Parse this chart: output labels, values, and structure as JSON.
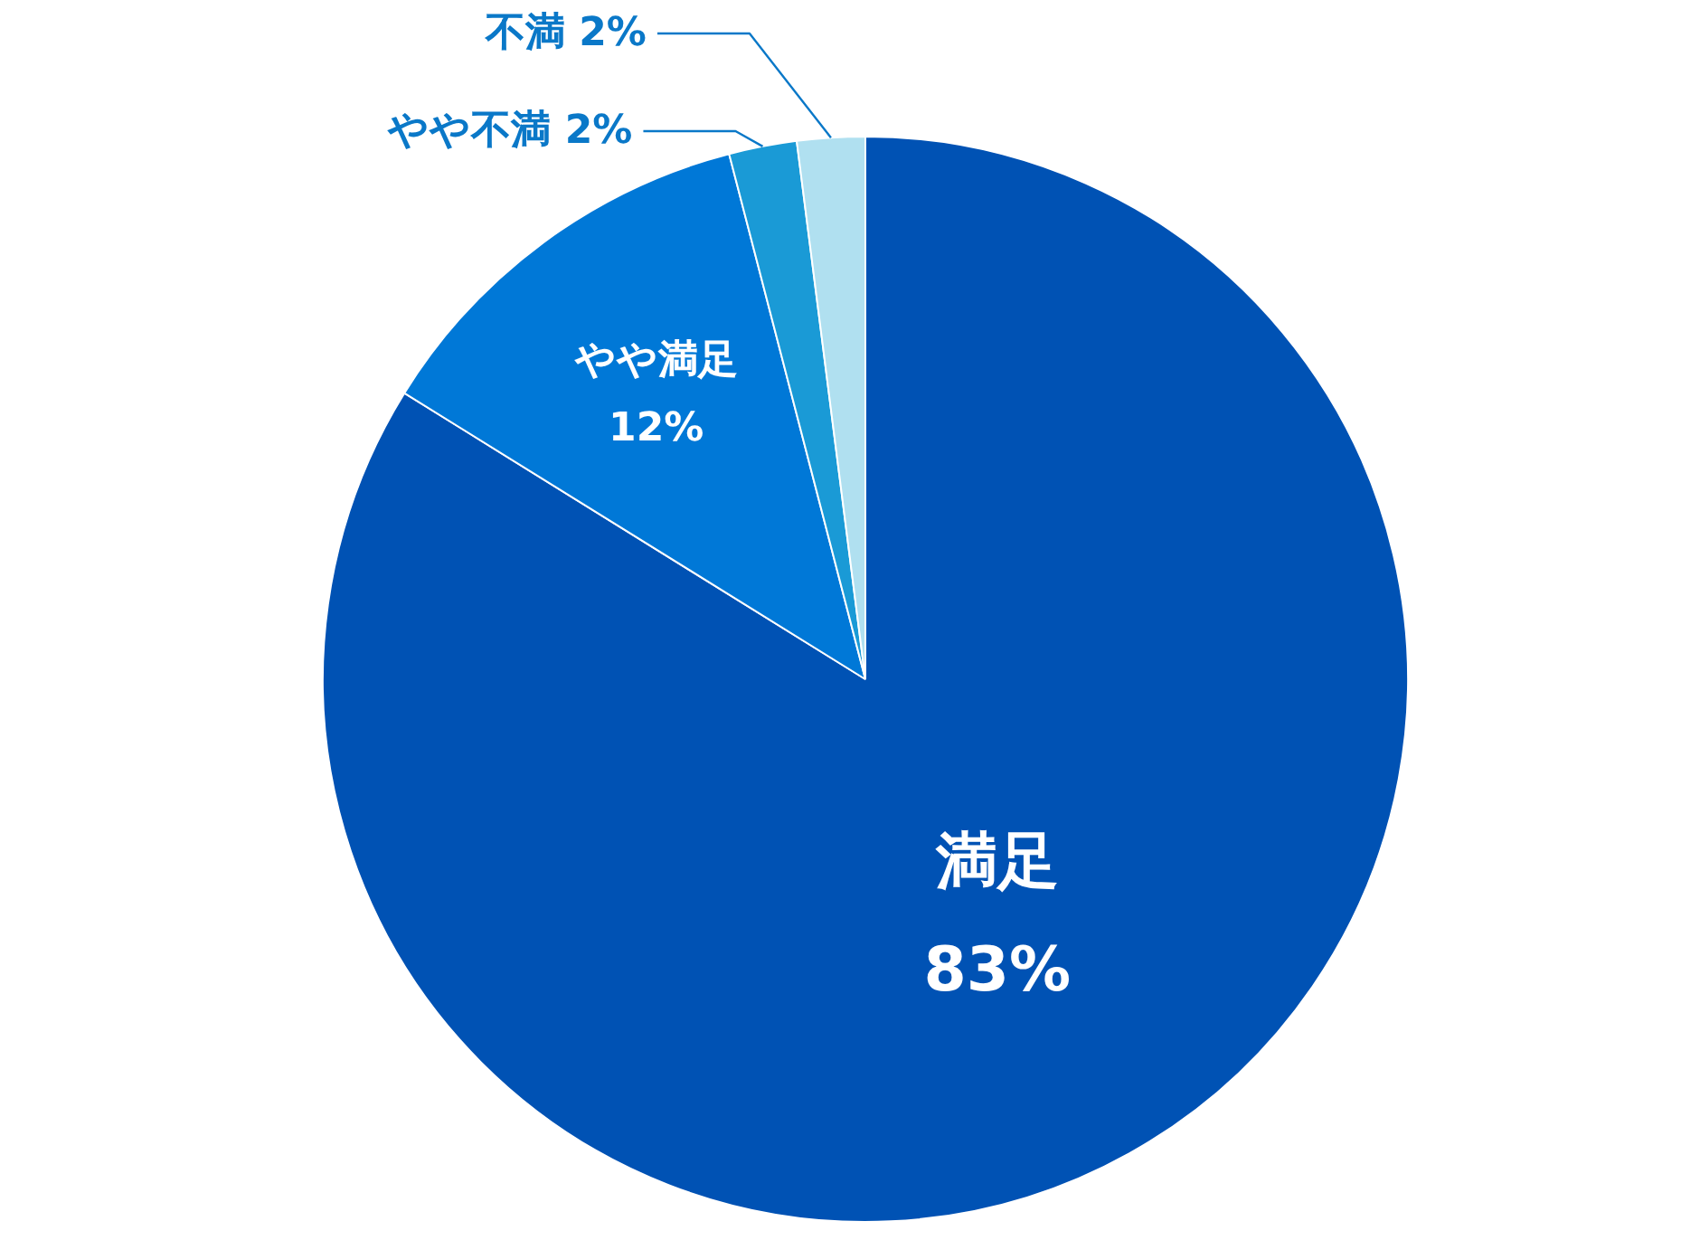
{
  "chart_data": {
    "type": "pie",
    "categories": [
      "満足",
      "やや満足",
      "やや不満",
      "不満"
    ],
    "values": [
      83,
      12,
      2,
      2
    ],
    "value_labels": [
      "83%",
      "12%",
      "2%",
      "2%"
    ],
    "colors": [
      "#0052b4",
      "#0078d7",
      "#1a9ad6",
      "#b0e0f0"
    ]
  }
}
